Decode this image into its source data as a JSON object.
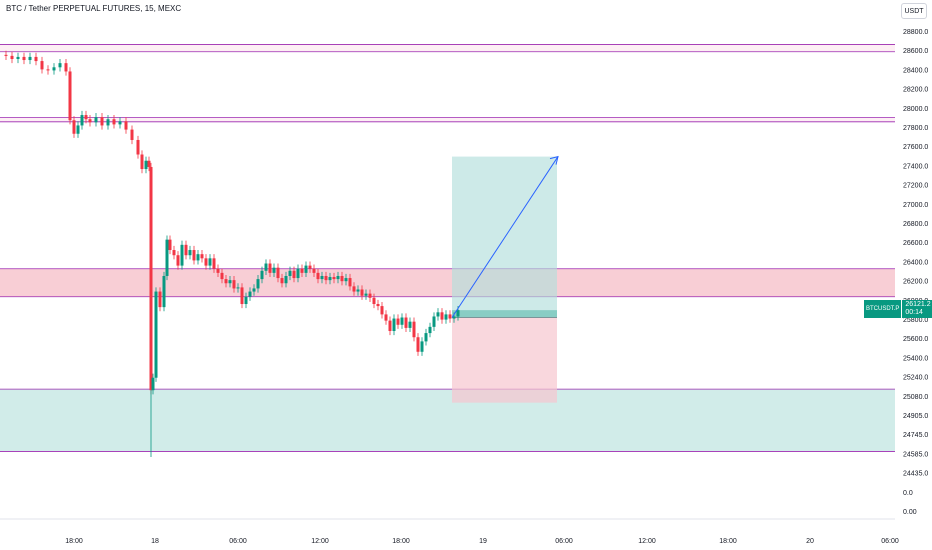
{
  "header": {
    "title": "BTC / Tether PERPETUAL FUTURES, 15, MEXC",
    "currency": "USDT"
  },
  "price_tag": {
    "symbol": "BTCUSDT.P",
    "price": "26121.2",
    "countdown": "00:14"
  },
  "colors": {
    "up": "#089981",
    "down": "#f23645",
    "resistance_fill": "#f7c6ce",
    "support_fill": "#b2dfdb",
    "level_line": "#9c27b0",
    "arrow": "#2962ff"
  },
  "chart_data": {
    "type": "candlestick",
    "title": "BTC / Tether PERPETUAL FUTURES, 15, MEXC",
    "y_axis": {
      "ticks": [
        "28800.0",
        "28600.0",
        "28400.0",
        "28200.0",
        "28000.0",
        "27800.0",
        "27600.0",
        "27400.0",
        "27200.0",
        "27000.0",
        "26800.0",
        "26600.0",
        "26400.0",
        "26200.0",
        "26000.0",
        "25800.0",
        "25600.0",
        "25400.0",
        "25240.0",
        "25080.0",
        "24905.0",
        "24745.0",
        "24585.0",
        "24435.0",
        "0.0",
        "0.00"
      ]
    },
    "x_axis": {
      "ticks": [
        "18:00",
        "18",
        "06:00",
        "12:00",
        "18:00",
        "19",
        "06:00",
        "12:00",
        "18:00",
        "20",
        "06:00"
      ]
    },
    "levels": {
      "resistance_lines": [
        28680,
        28610,
        27975,
        27935
      ],
      "zone_red": [
        26250,
        26520
      ],
      "zone_green": [
        24760,
        25360
      ]
    },
    "position": {
      "entry": 26050,
      "target": 27600,
      "stop": 25230
    },
    "path": [
      [
        0,
        28580
      ],
      [
        6,
        28570
      ],
      [
        12,
        28540
      ],
      [
        18,
        28560
      ],
      [
        24,
        28530
      ],
      [
        30,
        28560
      ],
      [
        36,
        28520
      ],
      [
        42,
        28440
      ],
      [
        48,
        28430
      ],
      [
        54,
        28460
      ],
      [
        60,
        28500
      ],
      [
        66,
        28420
      ],
      [
        70,
        27950
      ],
      [
        74,
        27820
      ],
      [
        78,
        27900
      ],
      [
        82,
        28000
      ],
      [
        86,
        27960
      ],
      [
        90,
        27930
      ],
      [
        96,
        27980
      ],
      [
        102,
        27900
      ],
      [
        108,
        27960
      ],
      [
        114,
        27910
      ],
      [
        120,
        27940
      ],
      [
        126,
        27860
      ],
      [
        132,
        27760
      ],
      [
        138,
        27620
      ],
      [
        142,
        27480
      ],
      [
        146,
        27560
      ],
      [
        149,
        27500
      ],
      [
        151,
        25350
      ],
      [
        153,
        25470
      ],
      [
        156,
        26300
      ],
      [
        160,
        26150
      ],
      [
        164,
        26450
      ],
      [
        167,
        26800
      ],
      [
        170,
        26700
      ],
      [
        174,
        26650
      ],
      [
        178,
        26550
      ],
      [
        182,
        26750
      ],
      [
        186,
        26650
      ],
      [
        190,
        26700
      ],
      [
        194,
        26600
      ],
      [
        198,
        26660
      ],
      [
        202,
        26620
      ],
      [
        206,
        26550
      ],
      [
        210,
        26620
      ],
      [
        214,
        26520
      ],
      [
        218,
        26480
      ],
      [
        222,
        26420
      ],
      [
        226,
        26380
      ],
      [
        230,
        26410
      ],
      [
        234,
        26330
      ],
      [
        238,
        26340
      ],
      [
        242,
        26180
      ],
      [
        246,
        26250
      ],
      [
        250,
        26300
      ],
      [
        254,
        26330
      ],
      [
        258,
        26420
      ],
      [
        262,
        26500
      ],
      [
        266,
        26570
      ],
      [
        270,
        26480
      ],
      [
        274,
        26530
      ],
      [
        278,
        26430
      ],
      [
        282,
        26380
      ],
      [
        286,
        26450
      ],
      [
        290,
        26500
      ],
      [
        294,
        26430
      ],
      [
        298,
        26520
      ],
      [
        302,
        26480
      ],
      [
        306,
        26550
      ],
      [
        310,
        26520
      ],
      [
        314,
        26480
      ],
      [
        318,
        26420
      ],
      [
        322,
        26450
      ],
      [
        326,
        26410
      ],
      [
        330,
        26440
      ],
      [
        334,
        26420
      ],
      [
        338,
        26450
      ],
      [
        342,
        26400
      ],
      [
        346,
        26430
      ],
      [
        350,
        26350
      ],
      [
        354,
        26300
      ],
      [
        358,
        26320
      ],
      [
        362,
        26260
      ],
      [
        366,
        26280
      ],
      [
        370,
        26240
      ],
      [
        374,
        26180
      ],
      [
        378,
        26160
      ],
      [
        382,
        26080
      ],
      [
        386,
        26020
      ],
      [
        390,
        25920
      ],
      [
        394,
        26040
      ],
      [
        398,
        25980
      ],
      [
        402,
        26050
      ],
      [
        406,
        25950
      ],
      [
        410,
        26010
      ],
      [
        414,
        25860
      ],
      [
        418,
        25720
      ],
      [
        422,
        25820
      ],
      [
        426,
        25900
      ],
      [
        430,
        25960
      ],
      [
        434,
        26060
      ],
      [
        438,
        26100
      ],
      [
        442,
        26030
      ],
      [
        446,
        26080
      ],
      [
        450,
        26040
      ],
      [
        454,
        26060
      ],
      [
        458,
        26121
      ]
    ]
  }
}
